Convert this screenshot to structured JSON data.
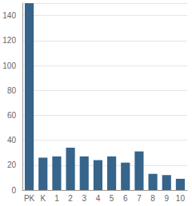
{
  "chart_data": {
    "type": "bar",
    "categories": [
      "PK",
      "K",
      "1",
      "2",
      "3",
      "4",
      "5",
      "6",
      "7",
      "8",
      "9",
      "10"
    ],
    "values": [
      150,
      26,
      27,
      34,
      27,
      24,
      27,
      22,
      31,
      13,
      12,
      9
    ],
    "color": "#36648b",
    "ylim": [
      0,
      150
    ],
    "yticks": [
      0,
      20,
      40,
      60,
      80,
      100,
      120,
      140
    ],
    "grid": true
  }
}
